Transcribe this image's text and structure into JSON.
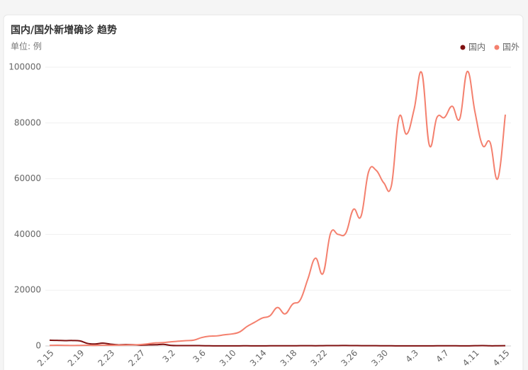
{
  "chart_data": {
    "type": "line",
    "title": "国内/国外新增确诊 趋势",
    "subtitle": "单位: 例",
    "categories": [
      "2.15",
      null,
      null,
      null,
      "2.19",
      null,
      null,
      null,
      "2.23",
      null,
      null,
      null,
      "2.27",
      null,
      null,
      null,
      "3.2",
      null,
      null,
      null,
      "3.6",
      null,
      null,
      null,
      "3.10",
      null,
      null,
      null,
      "3.14",
      null,
      null,
      null,
      "3.18",
      null,
      null,
      null,
      "3.22",
      null,
      null,
      null,
      "3.26",
      null,
      null,
      null,
      "3.30",
      null,
      null,
      null,
      "4.3",
      null,
      null,
      null,
      "4.7",
      null,
      null,
      null,
      "4.11",
      null,
      null,
      null,
      "4.15"
    ],
    "series": [
      {
        "name": "国内",
        "color": "#7f1010",
        "values": [
          2050,
          2000,
          1900,
          1950,
          1800,
          900,
          700,
          1000,
          650,
          400,
          500,
          450,
          300,
          400,
          430,
          570,
          200,
          130,
          120,
          140,
          100,
          50,
          40,
          30,
          20,
          40,
          50,
          30,
          40,
          50,
          50,
          50,
          50,
          80,
          100,
          60,
          100,
          120,
          140,
          150,
          130,
          110,
          100,
          90,
          60,
          50,
          40,
          30,
          30,
          30,
          30,
          60,
          60,
          70,
          40,
          30,
          80,
          120,
          50,
          60,
          80
        ]
      },
      {
        "name": "国外",
        "color": "#f4806e",
        "values": [
          200,
          250,
          200,
          150,
          200,
          250,
          200,
          300,
          250,
          300,
          350,
          400,
          500,
          800,
          1100,
          1200,
          1500,
          1700,
          1900,
          2100,
          3000,
          3500,
          3600,
          4000,
          4300,
          5000,
          7000,
          8500,
          10000,
          10800,
          13800,
          11500,
          15000,
          16500,
          24000,
          31500,
          26000,
          40500,
          40000,
          40500,
          49000,
          46500,
          62500,
          63000,
          58500,
          57500,
          82000,
          76000,
          85000,
          98000,
          72000,
          82000,
          82000,
          86000,
          81500,
          98500,
          84000,
          72000,
          73000,
          60000,
          83000
        ]
      }
    ],
    "ylim": [
      0,
      100000
    ],
    "yticks": [
      0,
      20000,
      40000,
      60000,
      80000,
      100000
    ],
    "grid": true,
    "legend": "top-right"
  }
}
